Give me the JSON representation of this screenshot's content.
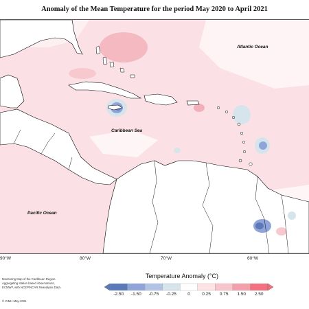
{
  "title": "Anomaly of the Mean Temperature for the period May 2020 to April 2021",
  "ocean_labels": {
    "atlantic": "Atlantic Ocean",
    "caribbean": "Caribbean Sea",
    "pacific": "Pacific Ocean"
  },
  "longitude_ticks": [
    "90°W",
    "80°W",
    "70°W",
    "60°W"
  ],
  "legend": {
    "title": "Temperature Anomaly (°C)",
    "labels": [
      "-2.50",
      "-1.50",
      "-0.75",
      "-0.25",
      "0",
      "0.25",
      "0.75",
      "1.50",
      "2.50"
    ],
    "colors": [
      "#5b78b8",
      "#8fa5da",
      "#b3c3e6",
      "#d6e4ec",
      "#ffffff",
      "#fde3e6",
      "#f9c5cc",
      "#f2a0ab",
      "#f4707f"
    ]
  },
  "credits": [
    "Monitoring Map of the Caribbean Region.",
    "Aggregating station based observations,",
    "ECMWF, with NCEP/NCAR Reanalysis Data.",
    "© CIMH May-2021"
  ],
  "colors": {
    "land": "#ffffff",
    "ocean_anomaly": "#fbe1e6",
    "coastline": "#000000"
  }
}
